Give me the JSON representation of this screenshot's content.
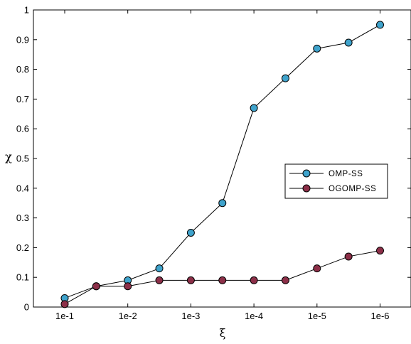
{
  "chart_data": {
    "type": "line",
    "xlabel": "ξ",
    "ylabel": "χ",
    "ylim": [
      0,
      1
    ],
    "x": [
      0,
      0.5,
      1,
      1.5,
      2,
      2.5,
      3,
      3.5,
      4,
      4.5,
      5
    ],
    "x_ticks": [
      {
        "x": 0,
        "label": "1e-1"
      },
      {
        "x": 1,
        "label": "1e-2"
      },
      {
        "x": 2,
        "label": "1e-3"
      },
      {
        "x": 3,
        "label": "1e-4"
      },
      {
        "x": 4,
        "label": "1e-5"
      },
      {
        "x": 5,
        "label": "1e-6"
      }
    ],
    "y_ticks": [
      {
        "y": 0,
        "label": "0"
      },
      {
        "y": 0.1,
        "label": "0.1"
      },
      {
        "y": 0.2,
        "label": "0.2"
      },
      {
        "y": 0.3,
        "label": "0.3"
      },
      {
        "y": 0.4,
        "label": "0.4"
      },
      {
        "y": 0.5,
        "label": "0.5"
      },
      {
        "y": 0.6,
        "label": "0.6"
      },
      {
        "y": 0.7,
        "label": "0.7"
      },
      {
        "y": 0.8,
        "label": "0.8"
      },
      {
        "y": 0.9,
        "label": "0.9"
      },
      {
        "y": 1,
        "label": "1"
      }
    ],
    "grid": false,
    "legend_position": "right",
    "series": [
      {
        "name": "OMP-SS",
        "color": "#3fa3cc",
        "values": [
          0.03,
          0.07,
          0.09,
          0.13,
          0.25,
          0.35,
          0.67,
          0.77,
          0.87,
          0.89,
          0.95
        ]
      },
      {
        "name": "OGOMP-SS",
        "color": "#8c2f48",
        "values": [
          0.01,
          0.07,
          0.07,
          0.09,
          0.09,
          0.09,
          0.09,
          0.09,
          0.13,
          0.17,
          0.19
        ]
      }
    ]
  }
}
